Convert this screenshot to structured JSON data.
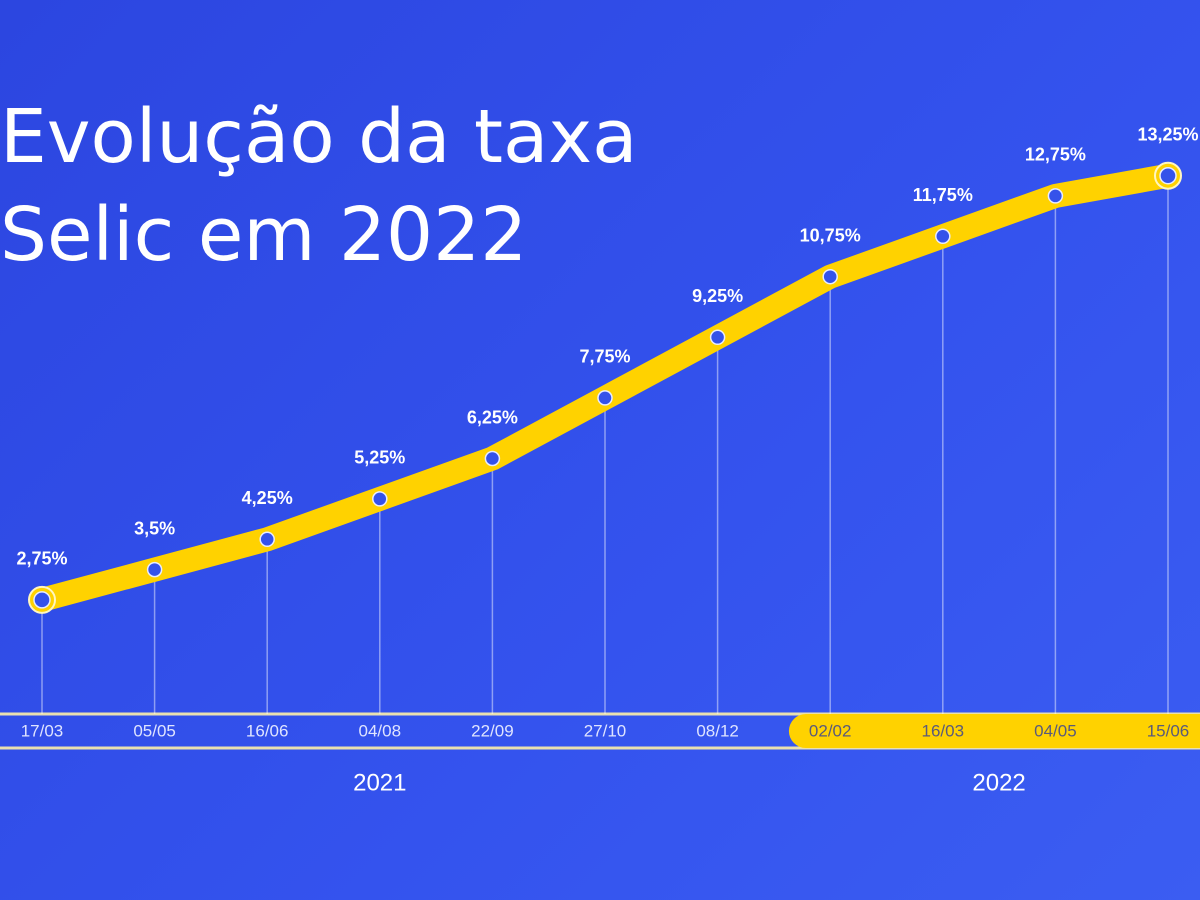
{
  "chart_data": {
    "type": "line",
    "title": "Evolução da taxa Selic em 2022",
    "categories": [
      "17/03",
      "05/05",
      "16/06",
      "04/08",
      "22/09",
      "27/10",
      "08/12",
      "02/02",
      "16/03",
      "04/05",
      "15/06"
    ],
    "series": [
      {
        "color": "#ffd200",
        "values": [
          2.75,
          3.5,
          4.25,
          5.25,
          6.25,
          7.75,
          9.25,
          10.75,
          11.75,
          12.75,
          13.25
        ],
        "value_labels": [
          "2,75%",
          "3,5%",
          "4,25%",
          "5,25%",
          "6,25%",
          "7,75%",
          "9,25%",
          "10,75%",
          "11,75%",
          "12,75%",
          "13,25%"
        ]
      }
    ],
    "x_groups": [
      {
        "label": "2021",
        "start": 0,
        "end": 6
      },
      {
        "label": "2022",
        "start": 7,
        "end": 10
      }
    ],
    "ylim": [
      0,
      15
    ]
  }
}
